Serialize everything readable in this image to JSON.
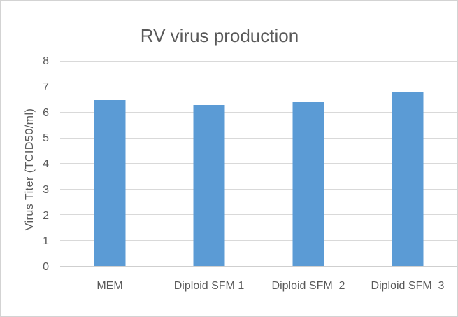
{
  "window": {
    "background": "#ffffff",
    "border_color": "#d3d3d3"
  },
  "chart_data": {
    "type": "bar",
    "title": "RV virus production",
    "categories": [
      "MEM",
      "Diploid SFM 1",
      "Diploid SFM  2",
      "Diploid SFM  3"
    ],
    "values": [
      6.5,
      6.3,
      6.4,
      6.8
    ],
    "xlabel": "",
    "ylabel": "Virus Titer (TCID50/ml)",
    "ylim": [
      0,
      8
    ],
    "yticks": [
      0,
      1,
      2,
      3,
      4,
      5,
      6,
      7,
      8
    ],
    "grid": true,
    "legend": "none",
    "bar_color": "#5b9bd5",
    "gridline_color": "#d9d9d9",
    "axis_line_color": "#cfcfcf",
    "text_color": "#595959"
  }
}
